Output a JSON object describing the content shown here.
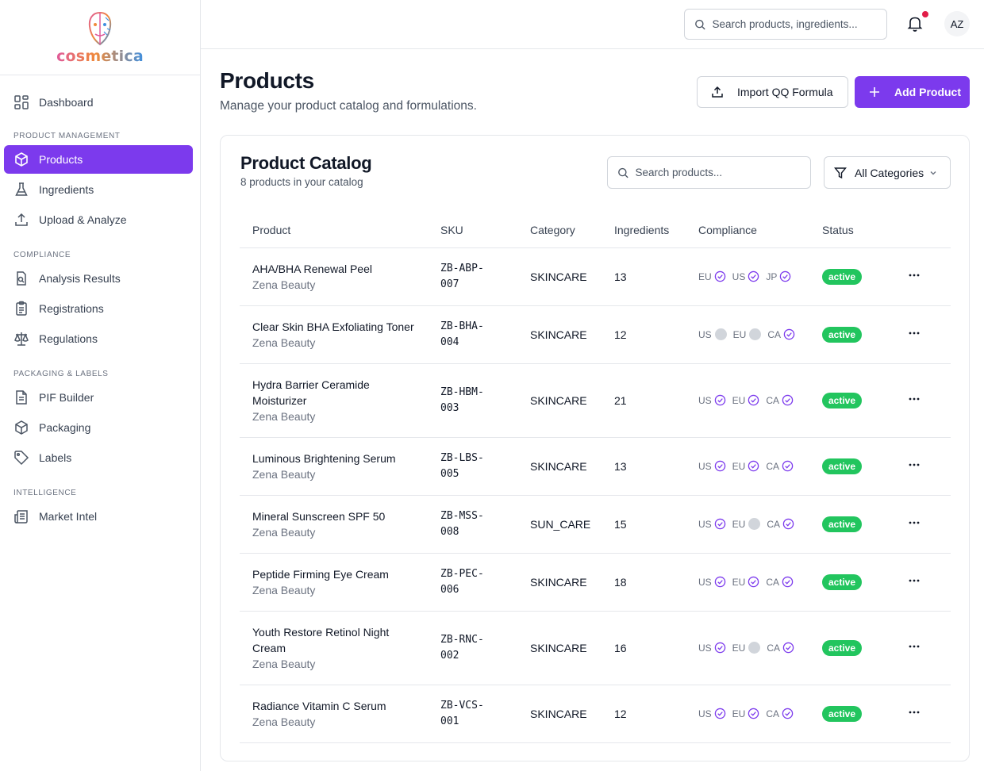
{
  "app": {
    "brand": "cosmetica",
    "user_initials": "AZ"
  },
  "header": {
    "search_placeholder": "Search products, ingredients..."
  },
  "sidebar": {
    "dashboard": "Dashboard",
    "sections": [
      {
        "title": "PRODUCT MANAGEMENT",
        "items": [
          "Products",
          "Ingredients",
          "Upload & Analyze"
        ]
      },
      {
        "title": "COMPLIANCE",
        "items": [
          "Analysis Results",
          "Registrations",
          "Regulations"
        ]
      },
      {
        "title": "PACKAGING & LABELS",
        "items": [
          "PIF Builder",
          "Packaging",
          "Labels"
        ]
      },
      {
        "title": "INTELLIGENCE",
        "items": [
          "Market Intel"
        ]
      }
    ],
    "active": "Products"
  },
  "page": {
    "title": "Products",
    "subtitle": "Manage your product catalog and formulations.",
    "import_label": "Import QQ Formula",
    "add_label": "Add Product"
  },
  "catalog": {
    "title": "Product Catalog",
    "count_text": "8 products in your catalog",
    "search_placeholder": "Search products...",
    "filter_label": "All Categories",
    "columns": [
      "Product",
      "SKU",
      "Category",
      "Ingredients",
      "Compliance",
      "Status"
    ],
    "rows": [
      {
        "name1": "AHA/BHA Renewal Peel",
        "name2": "",
        "brand": "Zena Beauty",
        "sku1": "ZB-ABP-",
        "sku2": "007",
        "category": "SKINCARE",
        "ingredients": "13",
        "compliance": [
          {
            "m": "EU",
            "ok": true
          },
          {
            "m": "US",
            "ok": true
          },
          {
            "m": "JP",
            "ok": true
          }
        ],
        "status": "active"
      },
      {
        "name1": "Clear Skin BHA Exfoliating Toner",
        "name2": "",
        "brand": "Zena Beauty",
        "sku1": "ZB-BHA-",
        "sku2": "004",
        "category": "SKINCARE",
        "ingredients": "12",
        "compliance": [
          {
            "m": "US",
            "ok": false
          },
          {
            "m": "EU",
            "ok": false
          },
          {
            "m": "CA",
            "ok": true
          }
        ],
        "status": "active"
      },
      {
        "name1": "Hydra Barrier Ceramide",
        "name2": "Moisturizer",
        "brand": "Zena Beauty",
        "sku1": "ZB-HBM-",
        "sku2": "003",
        "category": "SKINCARE",
        "ingredients": "21",
        "compliance": [
          {
            "m": "US",
            "ok": true
          },
          {
            "m": "EU",
            "ok": true
          },
          {
            "m": "CA",
            "ok": true
          }
        ],
        "status": "active"
      },
      {
        "name1": "Luminous Brightening Serum",
        "name2": "",
        "brand": "Zena Beauty",
        "sku1": "ZB-LBS-",
        "sku2": "005",
        "category": "SKINCARE",
        "ingredients": "13",
        "compliance": [
          {
            "m": "US",
            "ok": true
          },
          {
            "m": "EU",
            "ok": true
          },
          {
            "m": "CA",
            "ok": true
          }
        ],
        "status": "active"
      },
      {
        "name1": "Mineral Sunscreen SPF 50",
        "name2": "",
        "brand": "Zena Beauty",
        "sku1": "ZB-MSS-",
        "sku2": "008",
        "category": "SUN_CARE",
        "ingredients": "15",
        "compliance": [
          {
            "m": "US",
            "ok": true
          },
          {
            "m": "EU",
            "ok": false
          },
          {
            "m": "CA",
            "ok": true
          }
        ],
        "status": "active"
      },
      {
        "name1": "Peptide Firming Eye Cream",
        "name2": "",
        "brand": "Zena Beauty",
        "sku1": "ZB-PEC-",
        "sku2": "006",
        "category": "SKINCARE",
        "ingredients": "18",
        "compliance": [
          {
            "m": "US",
            "ok": true
          },
          {
            "m": "EU",
            "ok": true
          },
          {
            "m": "CA",
            "ok": true
          }
        ],
        "status": "active"
      },
      {
        "name1": "Youth Restore Retinol Night",
        "name2": "Cream",
        "brand": "Zena Beauty",
        "sku1": "ZB-RNC-",
        "sku2": "002",
        "category": "SKINCARE",
        "ingredients": "16",
        "compliance": [
          {
            "m": "US",
            "ok": true
          },
          {
            "m": "EU",
            "ok": false
          },
          {
            "m": "CA",
            "ok": true
          }
        ],
        "status": "active"
      },
      {
        "name1": "Radiance Vitamin C Serum",
        "name2": "",
        "brand": "Zena Beauty",
        "sku1": "ZB-VCS-",
        "sku2": "001",
        "category": "SKINCARE",
        "ingredients": "12",
        "compliance": [
          {
            "m": "US",
            "ok": true
          },
          {
            "m": "EU",
            "ok": true
          },
          {
            "m": "CA",
            "ok": true
          }
        ],
        "status": "active"
      }
    ]
  },
  "colors": {
    "accent": "#7c3aed",
    "status_active": "#22c55e",
    "notification": "#e11d48"
  }
}
